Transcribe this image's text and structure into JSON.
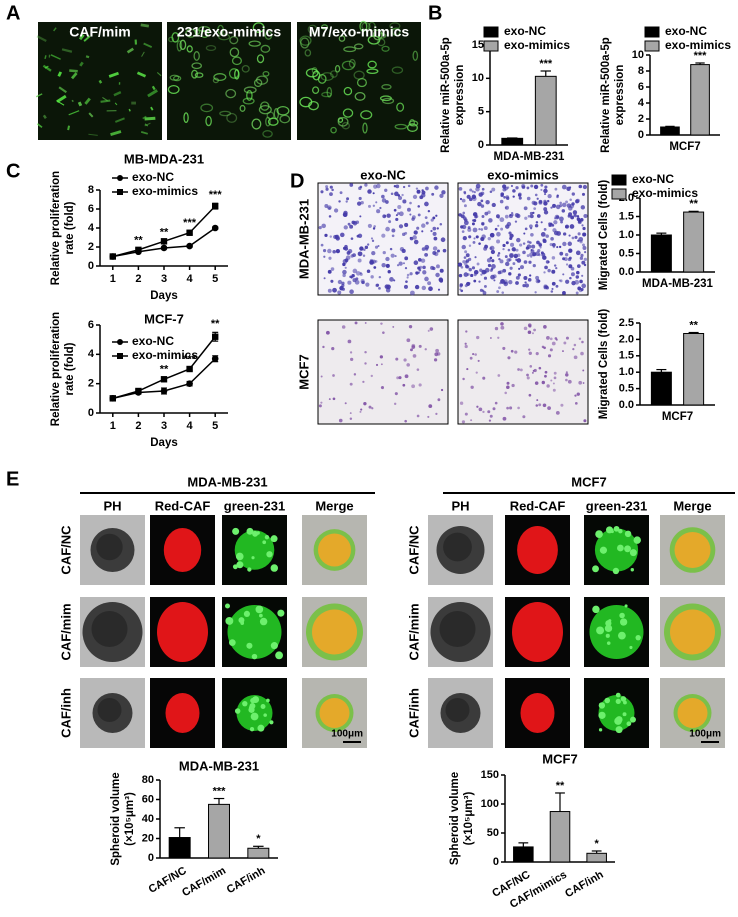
{
  "panel_labels": [
    "A",
    "B",
    "C",
    "D",
    "E"
  ],
  "panel_a": {
    "images": [
      "CAF/mim",
      "231/exo-mimics",
      "M7/exo-mimics"
    ]
  },
  "panel_d": {
    "columns": [
      "exo-NC",
      "exo-mimics"
    ],
    "rows": [
      "MDA-MB-231",
      "MCF7"
    ]
  },
  "panel_e": {
    "groups": [
      {
        "title": "MDA-MB-231",
        "columns": [
          "PH",
          "Red-CAF",
          "green-231",
          "Merge"
        ],
        "rows": [
          "CAF/NC",
          "CAF/mim",
          "CAF/inh"
        ],
        "scale_bar": "100μm"
      },
      {
        "title": "MCF7",
        "columns": [
          "PH",
          "Red-CAF",
          "green-231",
          "Merge"
        ],
        "rows": [
          "CAF/NC",
          "CAF/mim",
          "CAF/inh"
        ],
        "scale_bar": "100μm"
      }
    ]
  },
  "chart_data": [
    {
      "type": "bar",
      "categories": [
        "MDA-MB-231"
      ],
      "ylabel": [
        "Relative miR-500a-5p",
        "expression"
      ],
      "ylim": [
        0,
        15
      ],
      "yticks": [
        0,
        5,
        10,
        15
      ],
      "legend": "top-left",
      "series": [
        {
          "name": "exo-NC",
          "color": "#000000",
          "values": [
            1.0
          ],
          "errors": [
            0.05
          ]
        },
        {
          "name": "exo-mimics",
          "color": "#a6a6a6",
          "values": [
            10.3
          ],
          "errors": [
            0.8
          ],
          "significance": [
            "***"
          ]
        }
      ]
    },
    {
      "type": "bar",
      "categories": [
        "MCF7"
      ],
      "ylabel": [
        "Relative miR-500a-5p",
        "expression"
      ],
      "ylim": [
        0,
        10
      ],
      "yticks": [
        0,
        2,
        4,
        6,
        8,
        10
      ],
      "legend": "top-left",
      "series": [
        {
          "name": "exo-NC",
          "color": "#000000",
          "values": [
            1.0
          ],
          "errors": [
            0.08
          ]
        },
        {
          "name": "exo-mimics",
          "color": "#a6a6a6",
          "values": [
            8.8
          ],
          "errors": [
            0.2
          ],
          "significance": [
            "***"
          ]
        }
      ]
    },
    {
      "type": "line",
      "title": "MB-MDA-231",
      "x": [
        1,
        2,
        3,
        4,
        5
      ],
      "xlim": [
        0.5,
        5.5
      ],
      "xticks": [
        1,
        2,
        3,
        4,
        5
      ],
      "xlabel": "Days",
      "ylabel": [
        "Relative proliferation",
        "rate (fold)"
      ],
      "ylim": [
        0,
        8
      ],
      "yticks": [
        0,
        2,
        4,
        6,
        8
      ],
      "legend": "top-left",
      "significance": [
        null,
        "**",
        "**",
        "***",
        "***"
      ],
      "series": [
        {
          "name": "exo-NC",
          "color": "#000000",
          "marker": "circle",
          "values": [
            1.0,
            1.5,
            1.9,
            2.1,
            4.0
          ],
          "errors": [
            0.05,
            0.1,
            0.1,
            0.1,
            0.1
          ]
        },
        {
          "name": "exo-mimics",
          "color": "#000000",
          "marker": "square",
          "values": [
            1.0,
            1.7,
            2.6,
            3.5,
            6.3
          ],
          "errors": [
            0.05,
            0.15,
            0.1,
            0.15,
            0.3
          ]
        }
      ]
    },
    {
      "type": "line",
      "title": "MCF-7",
      "x": [
        1,
        2,
        3,
        4,
        5
      ],
      "xlim": [
        0.5,
        5.5
      ],
      "xticks": [
        1,
        2,
        3,
        4,
        5
      ],
      "xlabel": "Days",
      "ylabel": [
        "Relative proliferation",
        "rate (fold)"
      ],
      "ylim": [
        0,
        6
      ],
      "yticks": [
        0,
        2,
        4,
        6
      ],
      "legend": "top-left",
      "significance": [
        null,
        null,
        "**",
        "***",
        "**"
      ],
      "series": [
        {
          "name": "exo-NC",
          "color": "#000000",
          "marker": "circle",
          "values": [
            1.0,
            1.4,
            1.5,
            2.0,
            3.7
          ],
          "errors": [
            0.05,
            0.1,
            0.2,
            0.15,
            0.2
          ]
        },
        {
          "name": "exo-mimics",
          "color": "#000000",
          "marker": "square",
          "values": [
            1.0,
            1.5,
            2.3,
            3.0,
            5.2
          ],
          "errors": [
            0.05,
            0.1,
            0.1,
            0.1,
            0.3
          ]
        }
      ]
    },
    {
      "type": "bar",
      "categories": [
        "MDA-MB-231"
      ],
      "ylabel": [
        "Migrated Cells (fold)"
      ],
      "ylim": [
        0,
        2
      ],
      "yticks": [
        {
          "value": 0,
          "label": "0.0"
        },
        0.5,
        {
          "value": 1,
          "label": "1.0"
        },
        1.5,
        {
          "value": 2,
          "label": "2.0"
        }
      ],
      "legend": "top-left",
      "series": [
        {
          "name": "exo-NC",
          "color": "#000000",
          "values": [
            1.0
          ],
          "errors": [
            0.05
          ]
        },
        {
          "name": "exo-mimics",
          "color": "#a6a6a6",
          "values": [
            1.62
          ],
          "errors": [
            0.02
          ],
          "significance": [
            "**"
          ]
        }
      ]
    },
    {
      "type": "bar",
      "categories": [
        "MCF7"
      ],
      "ylabel": [
        "Migrated Cells (fold)"
      ],
      "ylim": [
        0,
        2.5
      ],
      "yticks": [
        {
          "value": 0,
          "label": "0.0"
        },
        0.5,
        {
          "value": 1,
          "label": "1.0"
        },
        1.5,
        {
          "value": 2,
          "label": "2.0"
        },
        2.5
      ],
      "series": [
        {
          "color": "#000000",
          "values": [
            1.0
          ],
          "errors": [
            0.08
          ]
        },
        {
          "color": "#a6a6a6",
          "values": [
            2.18
          ],
          "errors": [
            0.03
          ],
          "significance": [
            "**"
          ]
        }
      ]
    },
    {
      "type": "bar",
      "title": "MDA-MB-231",
      "categories": [
        "CAF/NC",
        "CAF/mim",
        "CAF/inh"
      ],
      "ylabel": [
        "Spheroid volume",
        "(×10⁵μm³)"
      ],
      "ylim": [
        0,
        80
      ],
      "yticks": [
        0,
        20,
        40,
        60,
        80
      ],
      "xtick_rotation": -30,
      "series": [
        {
          "colors": [
            "#000000",
            "#a6a6a6",
            "#a6a6a6"
          ],
          "values": [
            21,
            55,
            10
          ],
          "errors": [
            10,
            6,
            2
          ],
          "significance": [
            null,
            "***",
            "*"
          ]
        }
      ]
    },
    {
      "type": "bar",
      "title": "MCF7",
      "categories": [
        "CAF/NC",
        "CAF/mimics",
        "CAF/inh"
      ],
      "ylabel": [
        "Spheroid volume",
        "(×10⁵μm³)"
      ],
      "ylim": [
        0,
        150
      ],
      "yticks": [
        0,
        50,
        100,
        150
      ],
      "xtick_rotation": -30,
      "series": [
        {
          "colors": [
            "#000000",
            "#a6a6a6",
            "#a6a6a6"
          ],
          "values": [
            26,
            87,
            15
          ],
          "errors": [
            7,
            32,
            4
          ],
          "significance": [
            null,
            "**",
            "*"
          ]
        }
      ]
    }
  ]
}
